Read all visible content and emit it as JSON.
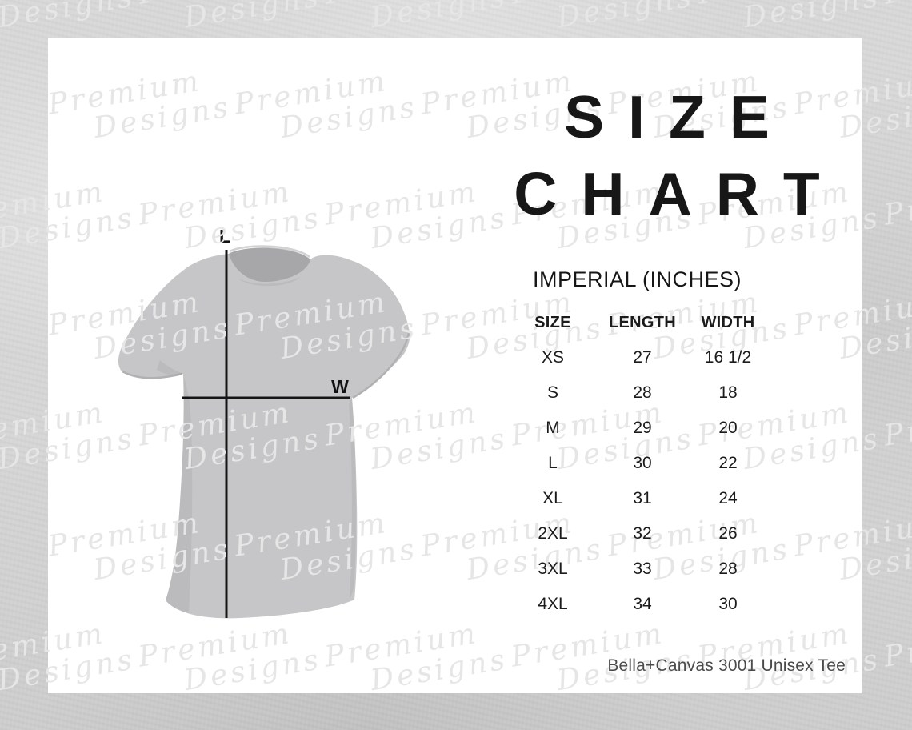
{
  "title": {
    "line1": "SIZE",
    "line2": "CHART"
  },
  "subtitle": "IMPERIAL (INCHES)",
  "diagram": {
    "length_label": "L",
    "width_label": "W"
  },
  "chart_data": {
    "type": "table",
    "title": "SIZE CHART",
    "subtitle": "IMPERIAL (INCHES)",
    "columns": [
      "SIZE",
      "LENGTH",
      "WIDTH"
    ],
    "rows": [
      [
        "XS",
        "27",
        "16 1/2"
      ],
      [
        "S",
        "28",
        "18"
      ],
      [
        "M",
        "29",
        "20"
      ],
      [
        "L",
        "30",
        "22"
      ],
      [
        "XL",
        "31",
        "24"
      ],
      [
        "2XL",
        "32",
        "26"
      ],
      [
        "3XL",
        "33",
        "28"
      ],
      [
        "4XL",
        "34",
        "30"
      ]
    ],
    "units": "inches",
    "measurements_shown_on_mockup": [
      "L = length",
      "W = width"
    ]
  },
  "footer": "Bella+Canvas 3001 Unisex Tee",
  "watermark": {
    "line1": "Premium",
    "line2": "Designs"
  },
  "colors": {
    "background": "#d6d6d6",
    "card": "#ffffff",
    "shirt": "#c6c6c8",
    "collar": "#a7a7a9",
    "measure_line": "#151515",
    "heading_text": "#171717",
    "footer_text": "#4b4b4b",
    "watermark": "#e6e6e6"
  }
}
